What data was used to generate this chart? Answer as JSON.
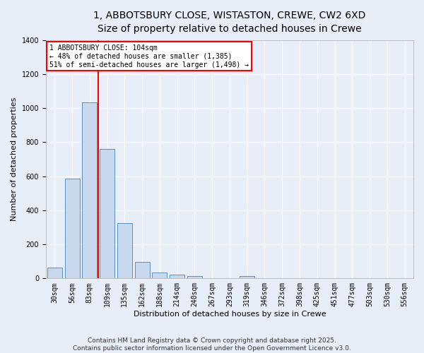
{
  "title_line1": "1, ABBOTSBURY CLOSE, WISTASTON, CREWE, CW2 6XD",
  "title_line2": "Size of property relative to detached houses in Crewe",
  "xlabel": "Distribution of detached houses by size in Crewe",
  "ylabel": "Number of detached properties",
  "bar_color": "#c9d9ed",
  "bar_edge_color": "#5a8fc2",
  "background_color": "#e8eef8",
  "grid_color": "#ffffff",
  "categories": [
    "30sqm",
    "56sqm",
    "83sqm",
    "109sqm",
    "135sqm",
    "162sqm",
    "188sqm",
    "214sqm",
    "240sqm",
    "267sqm",
    "293sqm",
    "319sqm",
    "346sqm",
    "372sqm",
    "398sqm",
    "425sqm",
    "451sqm",
    "477sqm",
    "503sqm",
    "530sqm",
    "556sqm"
  ],
  "values": [
    65,
    585,
    1035,
    760,
    325,
    95,
    35,
    22,
    12,
    0,
    0,
    12,
    0,
    0,
    0,
    0,
    0,
    0,
    0,
    0,
    0
  ],
  "vline_x": 2,
  "annotation_text": "1 ABBOTSBURY CLOSE: 104sqm\n← 48% of detached houses are smaller (1,385)\n51% of semi-detached houses are larger (1,498) →",
  "annotation_box_color": "white",
  "annotation_border_color": "red",
  "vline_color": "red",
  "ylim": [
    0,
    1400
  ],
  "yticks": [
    0,
    200,
    400,
    600,
    800,
    1000,
    1200,
    1400
  ],
  "footer_line1": "Contains HM Land Registry data © Crown copyright and database right 2025.",
  "footer_line2": "Contains public sector information licensed under the Open Government Licence v3.0.",
  "title_fontsize": 10,
  "axis_label_fontsize": 8,
  "tick_fontsize": 7,
  "annot_fontsize": 7,
  "footer_fontsize": 6.5
}
